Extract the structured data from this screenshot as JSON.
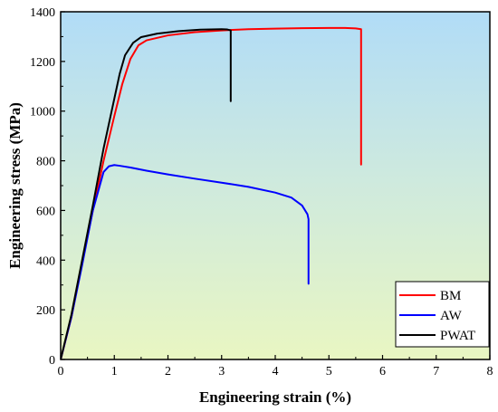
{
  "chart_data": {
    "type": "line",
    "title": "",
    "xlabel": "Engineering strain (%)",
    "ylabel": "Engineering stress (MPa)",
    "xlim": [
      0,
      8
    ],
    "ylim": [
      0,
      1400
    ],
    "xticks": [
      0,
      1,
      2,
      3,
      4,
      5,
      6,
      7,
      8
    ],
    "yticks": [
      0,
      200,
      400,
      600,
      800,
      1000,
      1200,
      1400
    ],
    "grid": false,
    "legend_position": "bottom-right",
    "background": "vertical gradient from light blue (top) to light green (bottom)",
    "series": [
      {
        "name": "BM",
        "color": "#ff0000",
        "x": [
          0,
          0.2,
          0.4,
          0.6,
          0.8,
          1.0,
          1.15,
          1.3,
          1.45,
          1.6,
          2.0,
          2.5,
          3.0,
          3.5,
          4.0,
          4.5,
          5.0,
          5.3,
          5.5,
          5.6,
          5.6
        ],
        "y": [
          0,
          170,
          390,
          600,
          800,
          980,
          1110,
          1210,
          1265,
          1285,
          1305,
          1318,
          1325,
          1330,
          1332,
          1334,
          1335,
          1335,
          1333,
          1330,
          785
        ]
      },
      {
        "name": "AW",
        "color": "#0000ff",
        "x": [
          0,
          0.2,
          0.4,
          0.6,
          0.8,
          0.9,
          1.0,
          1.1,
          1.3,
          1.6,
          2.0,
          2.5,
          3.0,
          3.5,
          4.0,
          4.3,
          4.5,
          4.6,
          4.62,
          4.62
        ],
        "y": [
          0,
          170,
          380,
          600,
          755,
          778,
          783,
          780,
          773,
          760,
          745,
          728,
          712,
          695,
          672,
          652,
          620,
          585,
          565,
          305
        ]
      },
      {
        "name": "PWAT",
        "color": "#000000",
        "x": [
          0,
          0.2,
          0.4,
          0.6,
          0.8,
          1.0,
          1.1,
          1.2,
          1.35,
          1.5,
          1.8,
          2.2,
          2.6,
          3.0,
          3.1,
          3.17,
          3.17
        ],
        "y": [
          0,
          180,
          400,
          620,
          850,
          1050,
          1150,
          1225,
          1275,
          1298,
          1312,
          1322,
          1328,
          1330,
          1329,
          1325,
          1040
        ]
      }
    ]
  }
}
